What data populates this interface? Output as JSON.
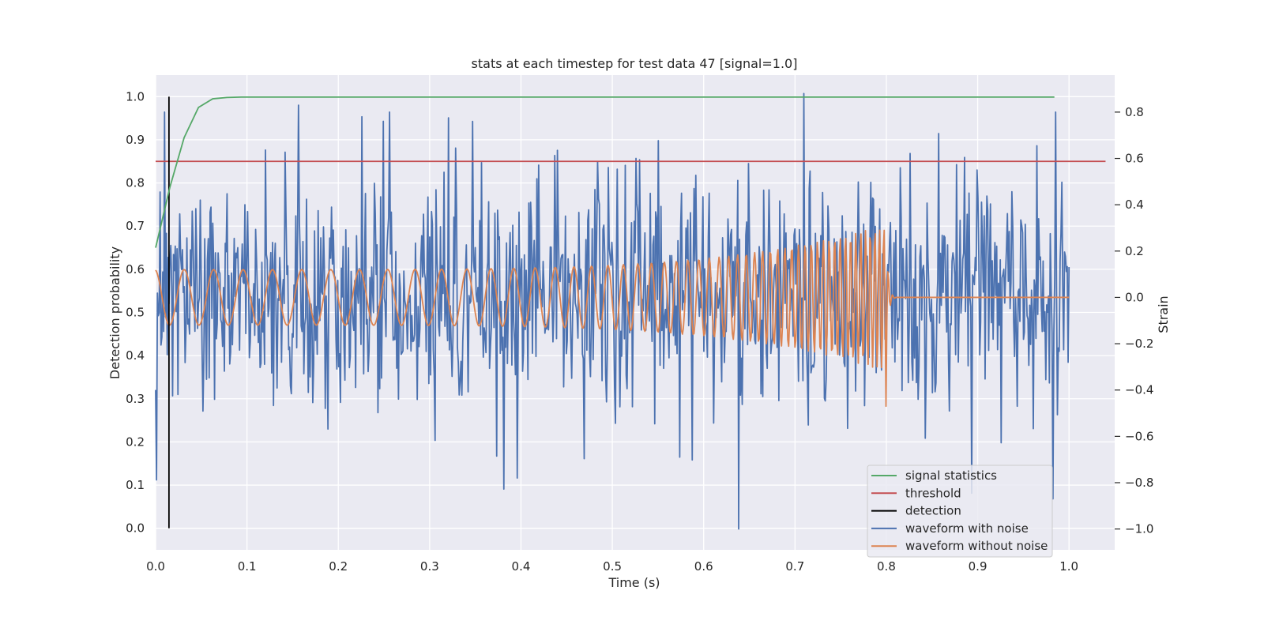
{
  "chart_data": {
    "type": "line",
    "title": "stats at each timestep for test data 47 [signal=1.0]",
    "xlabel": "Time (s)",
    "ylabel": "Detection probability",
    "ylabel_right": "Strain",
    "xlim": [
      0.0,
      1.05
    ],
    "ylim": [
      -0.05,
      1.05
    ],
    "ylim_right": [
      -1.09,
      0.96
    ],
    "x_ticks": [
      "0.0",
      "0.1",
      "0.2",
      "0.3",
      "0.4",
      "0.5",
      "0.6",
      "0.7",
      "0.8",
      "0.9",
      "1.0"
    ],
    "y_ticks": [
      "0.0",
      "0.1",
      "0.2",
      "0.3",
      "0.4",
      "0.5",
      "0.6",
      "0.7",
      "0.8",
      "0.9",
      "1.0"
    ],
    "y_right_ticks": [
      "−1.0",
      "−0.8",
      "−0.6",
      "−0.4",
      "−0.2",
      "0.0",
      "0.2",
      "0.4",
      "0.6",
      "0.8"
    ],
    "grid": true,
    "legend_position": "lower-right",
    "colors": {
      "plot_bg": "#eaeaf2",
      "grid": "#ffffff",
      "signal_statistics": "#55a868",
      "threshold": "#c44e52",
      "detection": "#000000",
      "waveform_with_noise": "#4c72b0",
      "waveform_without_noise": "#dd8452"
    },
    "series": [
      {
        "name": "signal statistics",
        "axis": "left",
        "x": [
          0.0,
          0.0156,
          0.0312,
          0.0469,
          0.0625,
          0.0781,
          0.0938,
          0.125,
          0.25,
          0.5,
          0.75,
          0.984
        ],
        "y": [
          0.65,
          0.79,
          0.905,
          0.975,
          0.995,
          0.998,
          0.999,
          0.999,
          0.999,
          0.999,
          0.999,
          0.999
        ]
      },
      {
        "name": "threshold",
        "axis": "left",
        "x": [
          0.0,
          1.04
        ],
        "y": [
          0.85,
          0.85
        ]
      },
      {
        "name": "detection",
        "axis": "left",
        "x": [
          0.0146,
          0.0146
        ],
        "y": [
          0.0,
          1.0
        ]
      },
      {
        "name": "waveform with noise",
        "axis": "right",
        "samples": 1024,
        "x_range": [
          0.0,
          1.0
        ],
        "std": 0.25,
        "peaks": [
          {
            "x": 0.156,
            "y": 0.83
          },
          {
            "x": 0.226,
            "y": 0.78
          },
          {
            "x": 0.256,
            "y": 0.8
          },
          {
            "x": 0.347,
            "y": 0.76
          },
          {
            "x": 0.396,
            "y": -0.78
          },
          {
            "x": 0.71,
            "y": 0.88
          },
          {
            "x": 0.638,
            "y": -1.0
          },
          {
            "x": 0.985,
            "y": 0.8
          },
          {
            "x": 0.982,
            "y": -0.87
          }
        ]
      },
      {
        "name": "waveform without noise",
        "axis": "right",
        "samples": 1024,
        "x_range": [
          0.0,
          1.0
        ],
        "merger_time": 0.8,
        "ringdown_end": 0.81,
        "amplitude_start": 0.12,
        "amplitude_merger": 0.32,
        "min_at_merger": -0.47,
        "frequency_start_hz": 31,
        "frequency_merger_hz": 210
      }
    ]
  }
}
